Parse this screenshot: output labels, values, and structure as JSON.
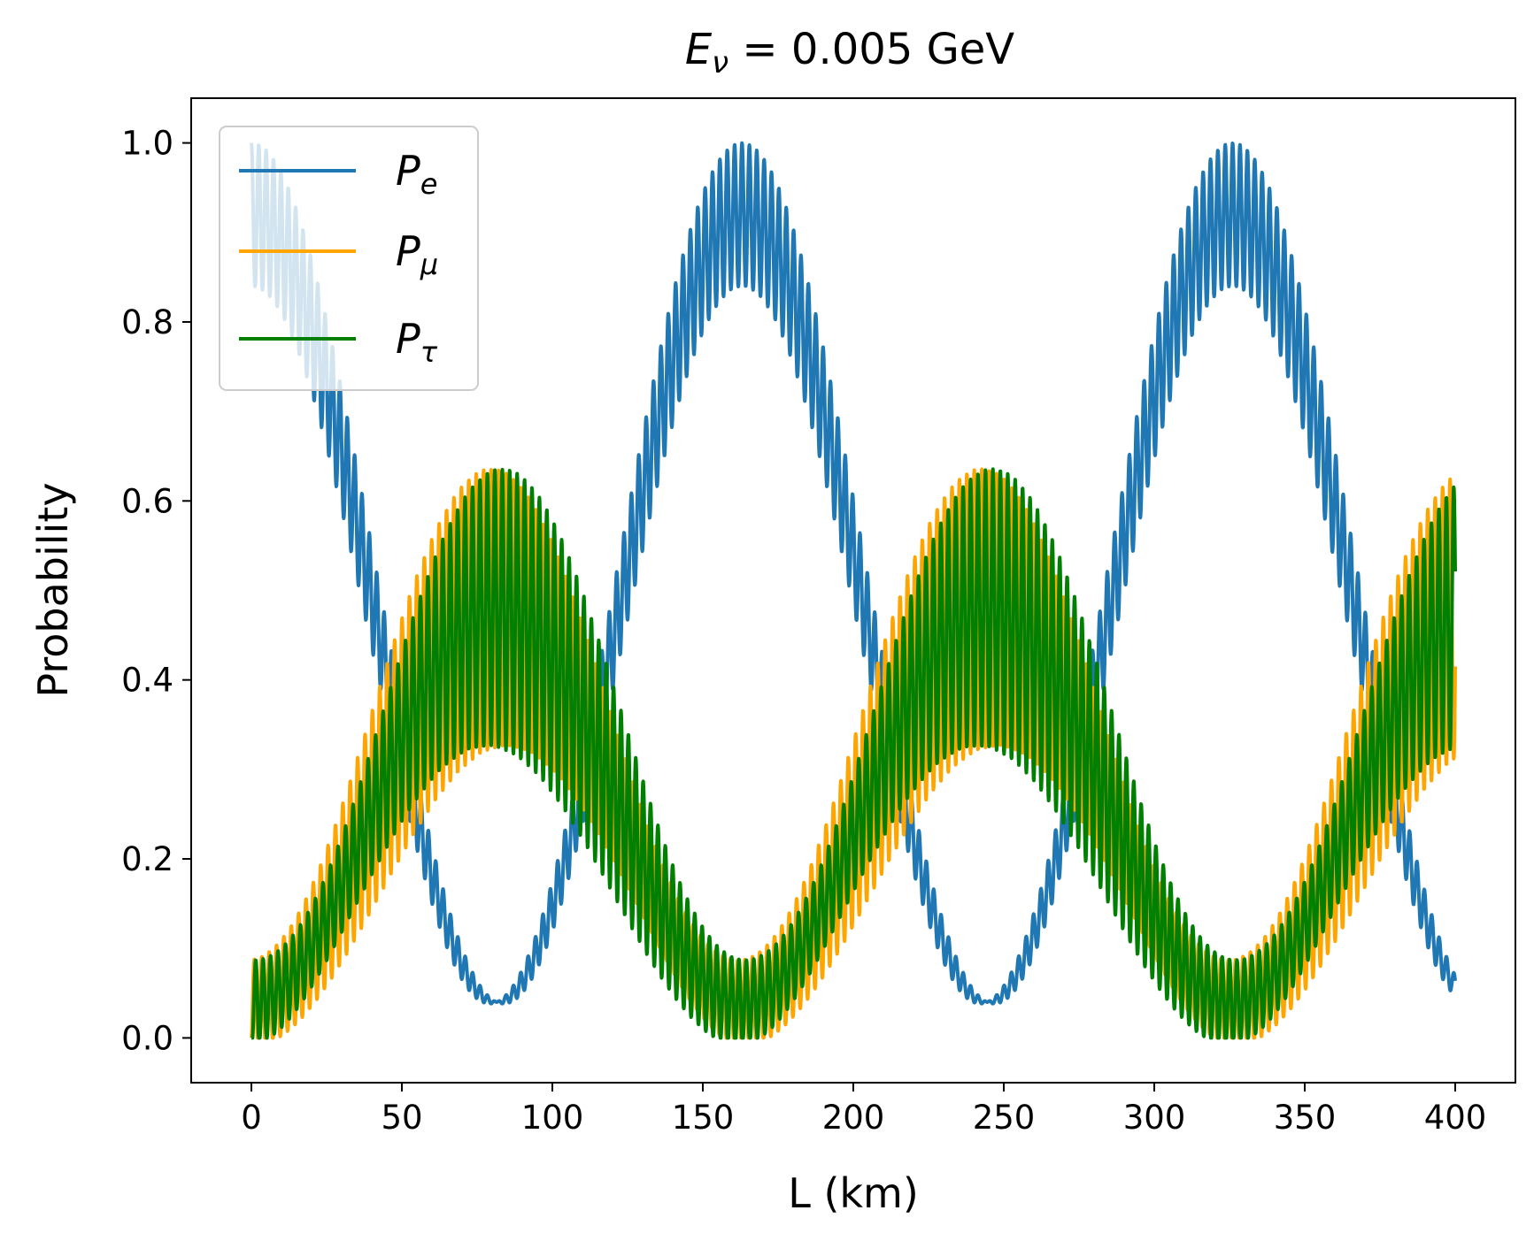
{
  "chart_data": {
    "type": "line",
    "title": {
      "main": "E",
      "sub": "ν",
      "rest": " = 0.005 GeV"
    },
    "xlabel": "L (km)",
    "ylabel": "Probability",
    "xlim": [
      -20,
      420
    ],
    "ylim": [
      -0.05,
      1.05
    ],
    "xticks": [
      0,
      50,
      100,
      150,
      200,
      250,
      300,
      350,
      400
    ],
    "yticks": [
      0.0,
      0.2,
      0.4,
      0.6,
      0.8,
      1.0
    ],
    "x_range": [
      0,
      400
    ],
    "grid": false,
    "legend_position": "top-left",
    "series": [
      {
        "name": {
          "main": "P",
          "sub": "e"
        },
        "color": "#1f77b4",
        "sample_x": [
          0,
          82,
          163,
          245,
          327,
          400
        ],
        "sample_y": [
          1.0,
          0.12,
          1.0,
          0.12,
          1.0,
          0.15
        ]
      },
      {
        "name": {
          "main": "P",
          "sub": "μ"
        },
        "color": "#ffa500",
        "sample_x": [
          0,
          82,
          163,
          245,
          327,
          400
        ],
        "sample_y": [
          0.0,
          0.56,
          0.0,
          0.56,
          0.0,
          0.57
        ]
      },
      {
        "name": {
          "main": "P",
          "sub": "τ"
        },
        "color": "#008000",
        "sample_x": [
          0,
          82,
          163,
          245,
          327,
          400
        ],
        "sample_y": [
          0.0,
          0.59,
          0.0,
          0.59,
          0.0,
          0.55
        ]
      }
    ]
  }
}
